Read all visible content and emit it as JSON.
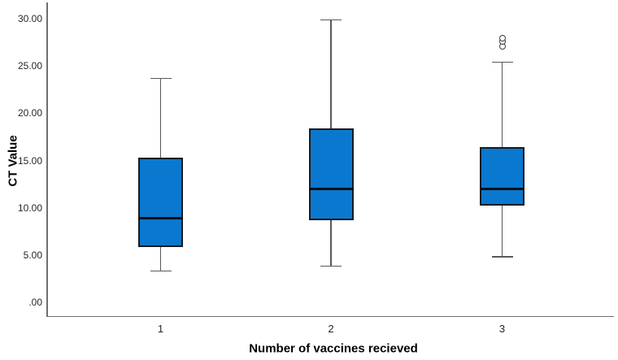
{
  "chart_data": {
    "type": "boxplot",
    "title": "",
    "xlabel": "Number of vaccines recieved",
    "ylabel": "CT Value",
    "ylim": [
      0,
      30
    ],
    "grid": false,
    "legend": false,
    "ytick_values": [
      0,
      5,
      10,
      15,
      20,
      25,
      30
    ],
    "ytick_labels": [
      ".00",
      "5.00",
      "10.00",
      "15.00",
      "20.00",
      "25.00",
      "30.00"
    ],
    "categories": [
      "1",
      "2",
      "3"
    ],
    "series": [
      {
        "category": "1",
        "whisker_low": 3.3,
        "q1": 5.8,
        "median": 8.9,
        "q3": 15.3,
        "whisker_high": 23.7,
        "outliers": []
      },
      {
        "category": "2",
        "whisker_low": 3.8,
        "q1": 8.7,
        "median": 12.0,
        "q3": 18.4,
        "whisker_high": 29.9,
        "outliers": []
      },
      {
        "category": "3",
        "whisker_low": 4.8,
        "q1": 10.2,
        "median": 12.0,
        "q3": 16.4,
        "whisker_high": 25.4,
        "outliers": [
          27.1,
          27.6,
          28.0
        ]
      }
    ]
  },
  "colors": {
    "background": "#ffffff",
    "box_fill": "#0a78cf",
    "box_border": "#171a21",
    "median": "#0c0f14",
    "whisker": "#595959",
    "axis": "#6f6f6f",
    "tick_text": "#262626",
    "title_text": "#000000",
    "outlier_stroke": "#3c3c3c"
  }
}
